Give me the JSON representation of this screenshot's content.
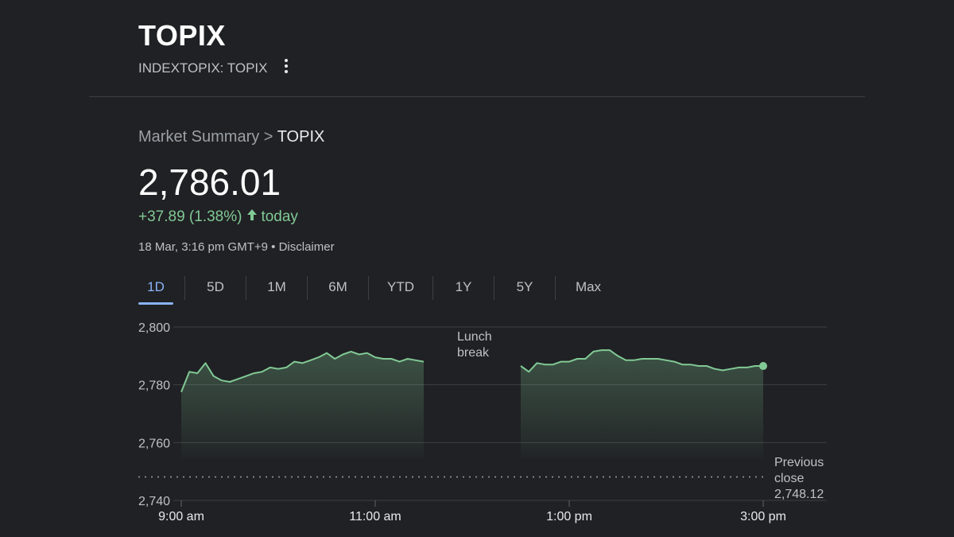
{
  "header": {
    "title": "TOPIX",
    "ticker": "INDEXTOPIX: TOPIX"
  },
  "breadcrumb": {
    "parent": "Market Summary",
    "separator": " > ",
    "current": "TOPIX"
  },
  "quote": {
    "price": "2,786.01",
    "change": "+37.89 (1.38%)",
    "period": "today",
    "timestamp": "18 Mar, 3:16 pm GMT+9",
    "separator": " • ",
    "disclaimer": "Disclaimer"
  },
  "ranges": {
    "selected": "1D",
    "items": [
      "1D",
      "5D",
      "1M",
      "6M",
      "YTD",
      "1Y",
      "5Y",
      "Max"
    ]
  },
  "colors": {
    "background": "#202124",
    "line": "#81c995",
    "accent": "#8ab4f8",
    "positive": "#81c995"
  },
  "chart_data": {
    "type": "area",
    "ylim": [
      2740,
      2800
    ],
    "y_ticks": [
      2800,
      2780,
      2760,
      2740
    ],
    "y_tick_labels": [
      "2,800",
      "2,780",
      "2,760",
      "2,740"
    ],
    "x_ticks": [
      "9:00 am",
      "11:00 am",
      "1:00 pm",
      "3:00 pm"
    ],
    "grid": true,
    "previous_close": 2748.12,
    "previous_close_label": [
      "Previous",
      "close",
      "2,748.12"
    ],
    "break_label": [
      "Lunch",
      "break"
    ],
    "series": [
      {
        "segments": [
          {
            "x": [
              "9:00",
              "9:05",
              "9:10",
              "9:15",
              "9:20",
              "9:25",
              "9:30",
              "9:35",
              "9:40",
              "9:45",
              "9:50",
              "9:55",
              "10:00",
              "10:05",
              "10:10",
              "10:15",
              "10:20",
              "10:25",
              "10:30",
              "10:35",
              "10:40",
              "10:45",
              "10:50",
              "10:55",
              "11:00",
              "11:05",
              "11:10",
              "11:15",
              "11:20",
              "11:25",
              "11:30"
            ],
            "y": [
              2777.5,
              2784.5,
              2784.0,
              2787.5,
              2783.0,
              2781.5,
              2781.0,
              2782.0,
              2783.0,
              2784.0,
              2784.5,
              2786.0,
              2785.5,
              2786.0,
              2788.0,
              2787.5,
              2788.5,
              2789.5,
              2791.0,
              2789.0,
              2790.5,
              2791.5,
              2790.5,
              2791.0,
              2789.5,
              2789.0,
              2789.0,
              2788.0,
              2789.0,
              2788.5,
              2788.0
            ]
          },
          {
            "x": [
              "12:30",
              "12:35",
              "12:40",
              "12:45",
              "12:50",
              "12:55",
              "13:00",
              "13:05",
              "13:10",
              "13:15",
              "13:20",
              "13:25",
              "13:30",
              "13:35",
              "13:40",
              "13:45",
              "13:50",
              "13:55",
              "14:00",
              "14:05",
              "14:10",
              "14:15",
              "14:20",
              "14:25",
              "14:30",
              "14:35",
              "14:40",
              "14:45",
              "14:50",
              "14:55",
              "15:00"
            ],
            "y": [
              2786.5,
              2784.5,
              2787.5,
              2787.0,
              2787.0,
              2788.0,
              2788.0,
              2789.0,
              2789.0,
              2791.5,
              2792.0,
              2792.0,
              2790.0,
              2788.5,
              2788.5,
              2789.0,
              2789.0,
              2789.0,
              2788.5,
              2788.0,
              2787.0,
              2787.0,
              2786.5,
              2786.5,
              2785.5,
              2785.0,
              2785.5,
              2786.0,
              2786.0,
              2786.5,
              2786.5
            ]
          }
        ]
      }
    ]
  }
}
